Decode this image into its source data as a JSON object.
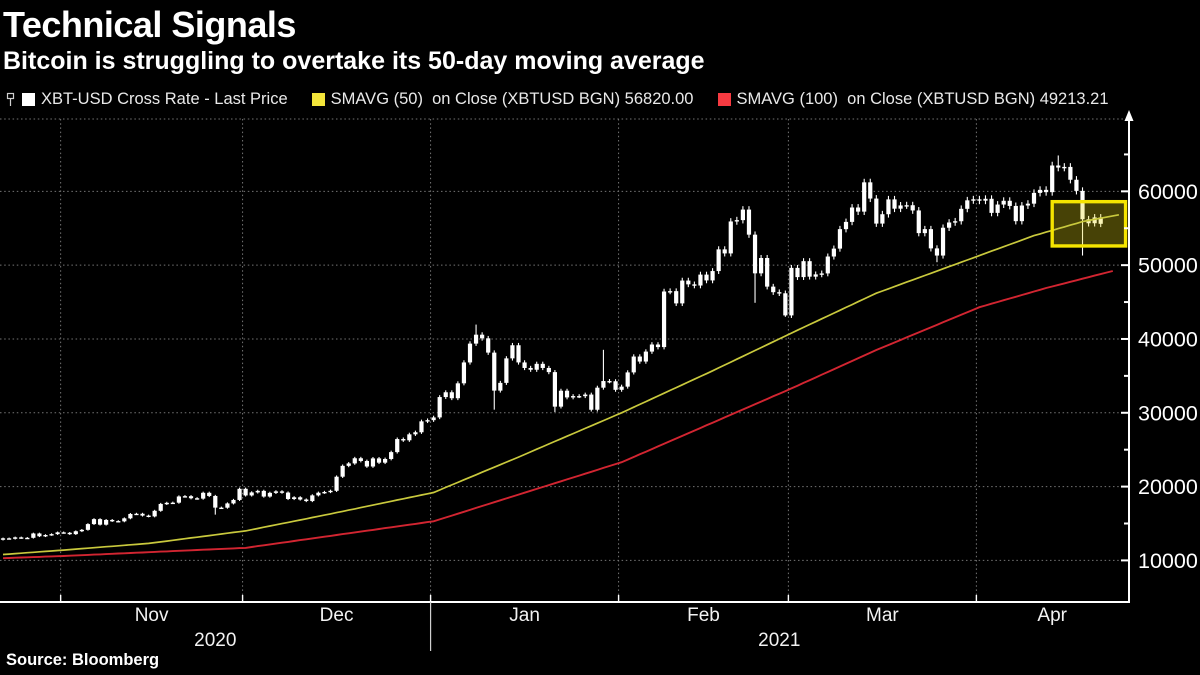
{
  "header": {
    "title": "Technical Signals",
    "subtitle": "Bitcoin is struggling to overtake its 50-day moving average"
  },
  "source": "Source: Bloomberg",
  "legend": [
    {
      "marker": "candlestick",
      "swatch": "#ffffff",
      "label": "XBT-USD Cross Rate - Last Price"
    },
    {
      "marker": "square",
      "swatch": "#f3e53a",
      "label": "SMAVG (50)  on Close (XBTUSD BGN) 56820.00"
    },
    {
      "marker": "square",
      "swatch": "#f63a41",
      "label": "SMAVG (100)  on Close (XBTUSD BGN) 49213.21"
    }
  ],
  "chart_data": {
    "type": "candlestick",
    "title": "Technical Signals",
    "subtitle": "Bitcoin is struggling to overtake its 50-day moving average",
    "x": {
      "total_slots": 186,
      "start_label": "Oct 22 2020",
      "month_boundaries": [
        10,
        40,
        71,
        102,
        130,
        161
      ],
      "month_labels": [
        {
          "label": "Nov",
          "center": 25
        },
        {
          "label": "Dec",
          "center": 55.5
        },
        {
          "label": "Jan",
          "center": 86.5
        },
        {
          "label": "Feb",
          "center": 116
        },
        {
          "label": "Mar",
          "center": 145.5
        },
        {
          "label": "Apr",
          "center": 173.5
        }
      ],
      "year_labels": [
        {
          "label": "2020",
          "center": 35.5
        },
        {
          "label": "2021",
          "center": 128.5
        }
      ],
      "year_divider_day": 71
    },
    "y": {
      "min": 4500,
      "max": 69800,
      "major_ticks": [
        10000,
        20000,
        30000,
        40000,
        50000,
        60000
      ],
      "minor_ticks": [
        15000,
        25000,
        35000,
        45000,
        55000,
        65000
      ],
      "grid": true,
      "axis_side": "right"
    },
    "series": {
      "price": {
        "name": "XBT-USD Cross Rate - Last Price",
        "first_open": 12800,
        "closes": [
          12990,
          12930,
          13120,
          13030,
          13060,
          13650,
          13270,
          13440,
          13560,
          13800,
          13740,
          13560,
          13950,
          14140,
          14920,
          15590,
          14840,
          15480,
          15330,
          15290,
          15700,
          16290,
          16320,
          16070,
          15960,
          16720,
          17650,
          17800,
          17820,
          18660,
          18700,
          18420,
          18370,
          19160,
          18730,
          17150,
          17140,
          17720,
          18190,
          19700,
          18800,
          19210,
          19420,
          18650,
          19150,
          19350,
          19190,
          18320,
          18550,
          18250,
          18040,
          18810,
          19170,
          19270,
          19430,
          21340,
          22810,
          23140,
          23840,
          23470,
          22720,
          23820,
          23240,
          23740,
          24670,
          26440,
          26270,
          27080,
          27360,
          28840,
          29000,
          29370,
          32130,
          32780,
          31970,
          33990,
          36820,
          39370,
          40580,
          40090,
          38150,
          33000,
          34050,
          37370,
          39150,
          36820,
          36070,
          35830,
          36630,
          36070,
          35510,
          30830,
          32990,
          32080,
          32260,
          32250,
          32470,
          30410,
          33400,
          34300,
          34270,
          33110,
          33540,
          35470,
          37620,
          36940,
          38290,
          39250,
          38900,
          46430,
          46480,
          44820,
          47910,
          47400,
          47240,
          48720,
          47930,
          49200,
          52140,
          51590,
          55920,
          56100,
          57530,
          54130,
          48890,
          50970,
          47090,
          46340,
          46190,
          43190,
          49630,
          48380,
          50540,
          48440,
          48750,
          48880,
          51170,
          52240,
          54880,
          55860,
          57810,
          57250,
          61220,
          59020,
          55630,
          56900,
          58910,
          57650,
          58090,
          58120,
          57410,
          54340,
          54880,
          52270,
          51300,
          55070,
          55780,
          55950,
          57630,
          58780,
          58920,
          58730,
          58990,
          57080,
          58210,
          58720,
          58020,
          55960,
          58080,
          58330,
          59790,
          60200,
          59890,
          63500,
          63220,
          63310,
          61570,
          60060,
          56220,
          55680,
          56470,
          55600
        ],
        "wick_lows": {
          "35": 16200,
          "81": 30420,
          "91": 30100,
          "124": 44900,
          "129": 43000,
          "154": 50400,
          "178": 51300
        },
        "wick_highs": {
          "78": 41950,
          "99": 38530,
          "142": 61700,
          "174": 64860
        }
      },
      "sma50": {
        "name": "SMAVG (50) on Close (XBTUSD BGN)",
        "last_value": 56820.0,
        "points": [
          [
            0,
            10800
          ],
          [
            10,
            11400
          ],
          [
            24,
            12300
          ],
          [
            40,
            14000
          ],
          [
            54,
            16300
          ],
          [
            71,
            19200
          ],
          [
            85,
            24000
          ],
          [
            102,
            30000
          ],
          [
            116,
            35300
          ],
          [
            130,
            40800
          ],
          [
            144,
            46200
          ],
          [
            161,
            51300
          ],
          [
            170,
            54000
          ],
          [
            178,
            55900
          ],
          [
            184,
            56820
          ]
        ]
      },
      "sma100": {
        "name": "SMAVG (100) on Close (XBTUSD BGN)",
        "last_value": 49213.21,
        "points": [
          [
            0,
            10300
          ],
          [
            10,
            10600
          ],
          [
            40,
            11700
          ],
          [
            71,
            15300
          ],
          [
            102,
            23300
          ],
          [
            130,
            33300
          ],
          [
            144,
            38500
          ],
          [
            161,
            44300
          ],
          [
            172,
            46900
          ],
          [
            183,
            49213
          ]
        ]
      }
    },
    "highlight_box": {
      "day_start": 173.5,
      "day_end": 185.6,
      "price_low": 52600,
      "price_high": 58600
    },
    "colors": {
      "background": "#000000",
      "candle": "#ffffff",
      "sma50": "#c9c93d",
      "sma100": "#d22531",
      "grid": "#757575",
      "axis": "#ffffff",
      "tick_label": "#ffffff",
      "month_label": "#f2f2f2",
      "highlight_border": "#f5e400",
      "highlight_fill": "rgba(235,220,20,0.30)"
    }
  }
}
